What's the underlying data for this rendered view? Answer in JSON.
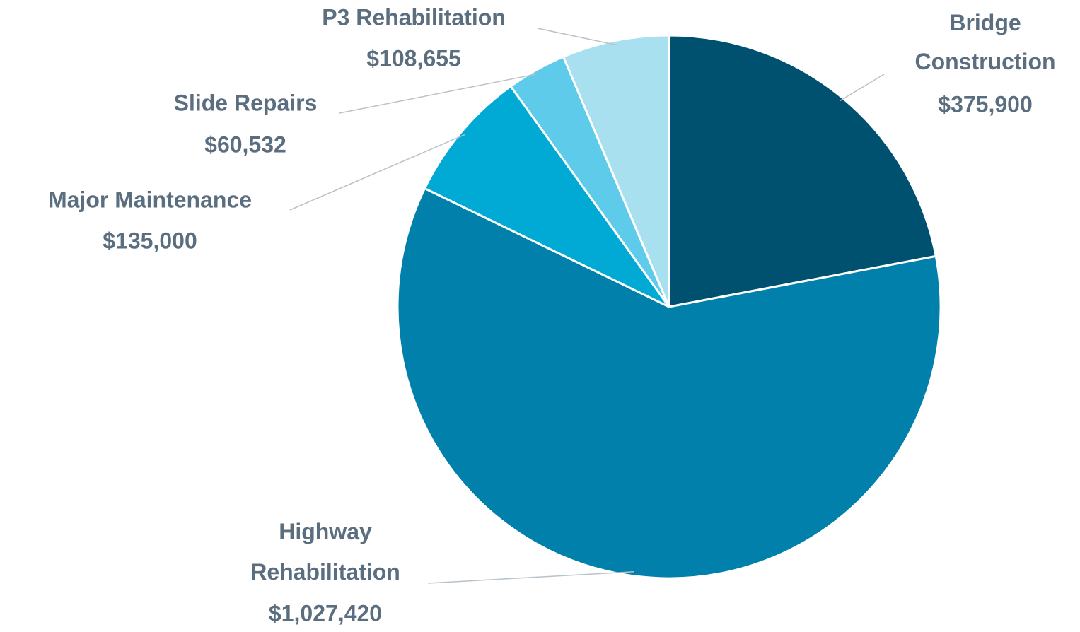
{
  "chart_data": {
    "type": "pie",
    "categories": [
      "Bridge Construction",
      "Highway Rehabilitation",
      "Major Maintenance",
      "Slide Repairs",
      "P3 Rehabilitation"
    ],
    "values": [
      375900,
      1027420,
      135000,
      60532,
      108655
    ],
    "value_labels": [
      "$375,900",
      "$1,027,420",
      "$135,000",
      "$60,532",
      "$108,655"
    ],
    "colors": [
      "#00506f",
      "#0080ab",
      "#00aad4",
      "#5ecbea",
      "#a8e0ef"
    ]
  }
}
